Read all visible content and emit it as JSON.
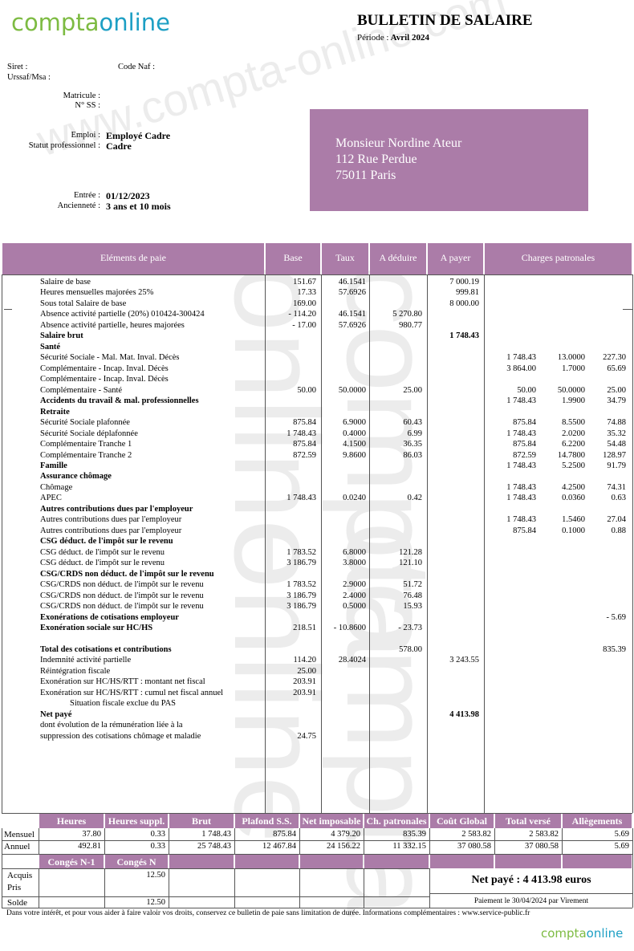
{
  "header": {
    "logo": [
      "compta",
      "online"
    ],
    "title": "BULLETIN DE SALAIRE",
    "period_label": "Période :",
    "period": "Avril 2024"
  },
  "watermark": {
    "site": "www.compta-online.com",
    "brand": [
      "compta",
      "online"
    ]
  },
  "employer": {
    "siret": "Siret :",
    "code_naf": "Code Naf :",
    "urssaf": "Urssaf/Msa :"
  },
  "employee": {
    "fields": [
      {
        "label": "Matricule :",
        "value": null
      },
      {
        "label": "N° SS :",
        "value": null
      },
      {
        "label": "Emploi :",
        "value": "Employé Cadre"
      },
      {
        "label": "Statut professionnel :",
        "value": "Cadre"
      },
      {
        "label": "Entrée :",
        "value": "01/12/2023"
      },
      {
        "label": "Ancienneté :",
        "value": "3 ans et 10 mois"
      }
    ]
  },
  "address": [
    "Monsieur Nordine Ateur",
    "112 Rue Perdue",
    "75011 Paris"
  ],
  "table": {
    "headers": [
      "Eléments de paie",
      "Base",
      "Taux",
      "A déduire",
      "A payer",
      "Charges patronales"
    ],
    "rows": [
      {
        "cells": [
          "Salaire de base",
          "151.67",
          "46.1541",
          null,
          "7 000.19",
          null,
          null,
          null
        ]
      },
      {
        "cells": [
          "Heures mensuelles majorées 25%",
          "17.33",
          "57.6926",
          null,
          "999.81",
          null,
          null,
          null
        ]
      },
      {
        "cells": [
          "Sous total Salaire de base",
          "169.00",
          null,
          null,
          "8 000.00",
          null,
          null,
          null
        ]
      },
      {
        "cells": [
          "Absence activité partielle (20%) 010424-300424",
          "- 114.20",
          "46.1541",
          "5 270.80",
          null,
          null,
          null,
          null
        ]
      },
      {
        "cells": [
          "Absence activité partielle, heures majorées",
          "- 17.00",
          "57.6926",
          "980.77",
          null,
          null,
          null,
          null
        ]
      },
      {
        "cells": [
          "Salaire brut",
          null,
          null,
          null,
          "1 748.43",
          null,
          null,
          null
        ],
        "bold": true
      },
      {
        "cells": [
          "Santé",
          null,
          null,
          null,
          null,
          null,
          null,
          null
        ],
        "bold": true
      },
      {
        "cells": [
          "Sécurité Sociale - Mal. Mat. Inval. Décès",
          null,
          null,
          null,
          null,
          "1 748.43",
          "13.0000",
          "227.30"
        ]
      },
      {
        "cells": [
          "Complémentaire - Incap. Inval. Décès",
          null,
          null,
          null,
          null,
          "3 864.00",
          "1.7000",
          "65.69"
        ]
      },
      {
        "cells": [
          "Complémentaire - Incap. Inval. Décès",
          null,
          null,
          null,
          null,
          null,
          null,
          null
        ]
      },
      {
        "cells": [
          "Complémentaire - Santé",
          "50.00",
          "50.0000",
          "25.00",
          null,
          "50.00",
          "50.0000",
          "25.00"
        ]
      },
      {
        "cells": [
          "Accidents du travail & mal. professionnelles",
          null,
          null,
          null,
          null,
          "1 748.43",
          "1.9900",
          "34.79"
        ],
        "bold": true
      },
      {
        "cells": [
          "Retraite",
          null,
          null,
          null,
          null,
          null,
          null,
          null
        ],
        "bold": true
      },
      {
        "cells": [
          "Sécurité Sociale plafonnée",
          "875.84",
          "6.9000",
          "60.43",
          null,
          "875.84",
          "8.5500",
          "74.88"
        ]
      },
      {
        "cells": [
          "Sécurité Sociale déplafonnée",
          "1 748.43",
          "0.4000",
          "6.99",
          null,
          "1 748.43",
          "2.0200",
          "35.32"
        ]
      },
      {
        "cells": [
          "Complémentaire Tranche 1",
          "875.84",
          "4.1500",
          "36.35",
          null,
          "875.84",
          "6.2200",
          "54.48"
        ]
      },
      {
        "cells": [
          "Complémentaire Tranche 2",
          "872.59",
          "9.8600",
          "86.03",
          null,
          "872.59",
          "14.7800",
          "128.97"
        ]
      },
      {
        "cells": [
          "Famille",
          null,
          null,
          null,
          null,
          "1 748.43",
          "5.2500",
          "91.79"
        ],
        "bold": true
      },
      {
        "cells": [
          "Assurance chômage",
          null,
          null,
          null,
          null,
          null,
          null,
          null
        ],
        "bold": true
      },
      {
        "cells": [
          "Chômage",
          null,
          null,
          null,
          null,
          "1 748.43",
          "4.2500",
          "74.31"
        ]
      },
      {
        "cells": [
          "APEC",
          "1 748.43",
          "0.0240",
          "0.42",
          null,
          "1 748.43",
          "0.0360",
          "0.63"
        ]
      },
      {
        "cells": [
          "Autres contributions dues par l'employeur",
          null,
          null,
          null,
          null,
          null,
          null,
          null
        ],
        "bold": true
      },
      {
        "cells": [
          "Autres contributions dues par l'employeur",
          null,
          null,
          null,
          null,
          "1 748.43",
          "1.5460",
          "27.04"
        ]
      },
      {
        "cells": [
          "Autres contributions dues par l'employeur",
          null,
          null,
          null,
          null,
          "875.84",
          "0.1000",
          "0.88"
        ]
      },
      {
        "cells": [
          "CSG déduct. de l'impôt sur le revenu",
          null,
          null,
          null,
          null,
          null,
          null,
          null
        ],
        "bold": true
      },
      {
        "cells": [
          "CSG déduct. de l'impôt sur le revenu",
          "1 783.52",
          "6.8000",
          "121.28",
          null,
          null,
          null,
          null
        ]
      },
      {
        "cells": [
          "CSG déduct. de l'impôt sur le revenu",
          "3 186.79",
          "3.8000",
          "121.10",
          null,
          null,
          null,
          null
        ]
      },
      {
        "cells": [
          "CSG/CRDS non déduct. de l'impôt sur le revenu",
          null,
          null,
          null,
          null,
          null,
          null,
          null
        ],
        "bold": true
      },
      {
        "cells": [
          "CSG/CRDS non déduct. de l'impôt sur le revenu",
          "1 783.52",
          "2.9000",
          "51.72",
          null,
          null,
          null,
          null
        ]
      },
      {
        "cells": [
          "CSG/CRDS non déduct. de l'impôt sur le revenu",
          "3 186.79",
          "2.4000",
          "76.48",
          null,
          null,
          null,
          null
        ]
      },
      {
        "cells": [
          "CSG/CRDS non déduct. de l'impôt sur le revenu",
          "3 186.79",
          "0.5000",
          "15.93",
          null,
          null,
          null,
          null
        ]
      },
      {
        "cells": [
          "Exonérations de cotisations employeur",
          null,
          null,
          null,
          null,
          null,
          null,
          "- 5.69"
        ],
        "bold": true
      },
      {
        "cells": [
          "Exonération sociale sur HC/HS",
          "218.51",
          "- 10.8600",
          "- 23.73",
          null,
          null,
          null,
          null
        ],
        "bold": true
      },
      {
        "cells": [
          "Total des cotisations et contributions",
          null,
          null,
          "578.00",
          null,
          null,
          null,
          "835.39"
        ],
        "bold": true,
        "gap_before": true
      },
      {
        "cells": [
          "Indemnité activité partielle",
          "114.20",
          "28.4024",
          null,
          "3 243.55",
          null,
          null,
          null
        ]
      },
      {
        "cells": [
          "Réintégration fiscale",
          "25.00",
          null,
          null,
          null,
          null,
          null,
          null
        ]
      },
      {
        "cells": [
          "Exonération sur HC/HS/RTT : montant net fiscal",
          "203.91",
          null,
          null,
          null,
          null,
          null,
          null
        ]
      },
      {
        "cells": [
          "Exonération sur HC/HS/RTT : cumul net fiscal annuel",
          "203.91",
          null,
          null,
          null,
          null,
          null,
          null
        ]
      },
      {
        "cells": [
          "Situation fiscale exclue du PAS",
          null,
          null,
          null,
          null,
          null,
          null,
          null
        ],
        "indent": true
      },
      {
        "cells": [
          "Net payé",
          null,
          null,
          null,
          "4 413.98",
          null,
          null,
          null
        ],
        "bold": true
      },
      {
        "cells": [
          "dont évolution de la rémunération liée à la",
          null,
          null,
          null,
          null,
          null,
          null,
          null
        ]
      },
      {
        "cells": [
          "suppression des cotisations chômage et maladie",
          "24.75",
          null,
          null,
          null,
          null,
          null,
          null
        ]
      }
    ]
  },
  "summary": {
    "headers": [
      "Heures",
      "Heures suppl.",
      "Brut",
      "Plafond S.S.",
      "Net imposable",
      "Ch. patronales",
      "Coût Global",
      "Total versé",
      "Allègements"
    ],
    "rows": [
      {
        "label": "Mensuel",
        "values": [
          "37.80",
          "0.33",
          "1 748.43",
          "875.84",
          "4 379.20",
          "835.39",
          "2 583.82",
          "2 583.82",
          "5.69"
        ]
      },
      {
        "label": "Annuel",
        "values": [
          "492.81",
          "0.33",
          "25 748.43",
          "12 467.84",
          "24 156.22",
          "11 332.15",
          "37 080.58",
          "37 080.58",
          "5.69"
        ]
      }
    ]
  },
  "leave": {
    "headers": [
      "Congés N-1",
      "Congés N"
    ],
    "rows": [
      {
        "label": "Acquis",
        "values": [
          null,
          "12.50"
        ]
      },
      {
        "label": "Pris",
        "values": [
          null,
          null
        ]
      },
      {
        "label": "Solde",
        "values": [
          null,
          "12.50"
        ]
      }
    ]
  },
  "payment": {
    "net": "Net payé : 4 413.98 euros",
    "date": "Paiement le 30/04/2024 par Virement"
  },
  "footer": "Dans votre intérêt, et pour vous aider à faire valoir vos droits, conservez ce bulletin de paie sans limitation de durée. Informations complémentaires : www.service-public.fr"
}
